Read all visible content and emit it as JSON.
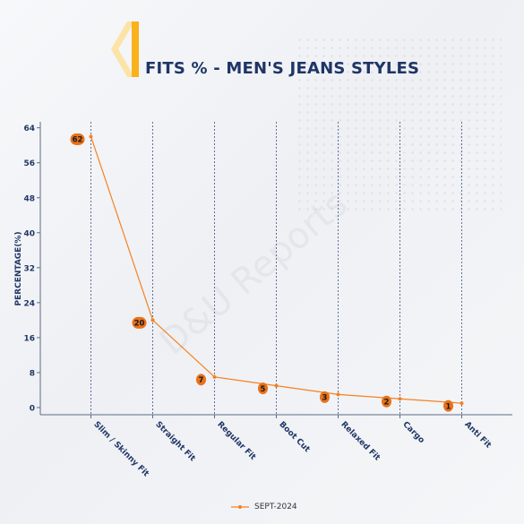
{
  "header": {
    "title": "FITS % - MEN'S JEANS STYLES"
  },
  "colors": {
    "accent": "#f7931e",
    "line": "#f58220",
    "badge": "#e8711a",
    "axis": "#1f3566",
    "chevron_light": "#fce3a6",
    "chevron_dark": "#f9b21b"
  },
  "chart_data": {
    "type": "line",
    "categories": [
      "Slim / Skinny Fit",
      "Straight Fit",
      "Regular Fit",
      "Boot Cut",
      "Relaxed Fit",
      "Cargo",
      "Anti Fit"
    ],
    "series": [
      {
        "name": "SEPT-2024",
        "values": [
          62,
          20,
          7,
          5,
          3,
          2,
          1
        ]
      }
    ],
    "ylabel": "PERCENTAGE(%)",
    "yticks": [
      0,
      8,
      16,
      24,
      32,
      40,
      48,
      56,
      64
    ],
    "ylim": [
      -2,
      65
    ],
    "legend_position": "bottom-center",
    "grid": "vertical-dashed"
  }
}
